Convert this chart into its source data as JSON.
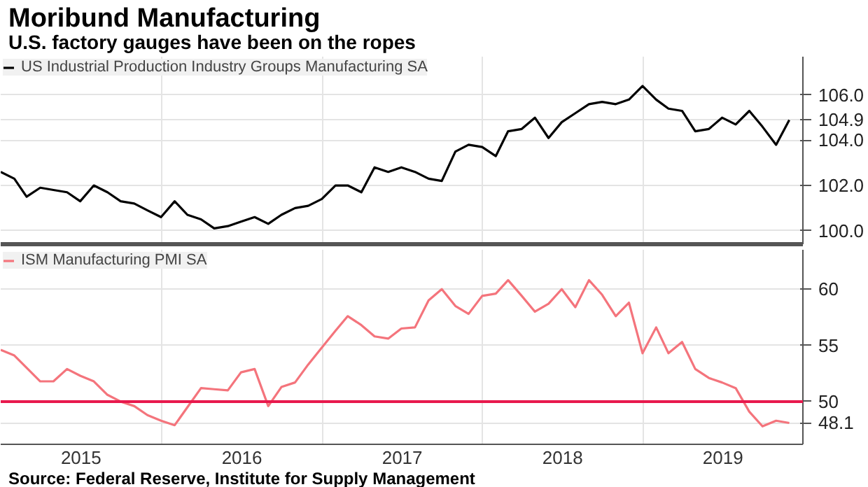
{
  "chart_data": [
    {
      "type": "line",
      "title": "Moribund Manufacturing",
      "subtitle": "U.S. factory gauges have been on the ropes",
      "x": [
        "2014-12-31",
        "2015-01-31",
        "2015-02-28",
        "2015-03-31",
        "2015-04-30",
        "2015-05-31",
        "2015-06-30",
        "2015-07-31",
        "2015-08-31",
        "2015-09-30",
        "2015-10-31",
        "2015-11-30",
        "2015-12-31",
        "2016-01-31",
        "2016-02-29",
        "2016-03-31",
        "2016-04-30",
        "2016-05-31",
        "2016-06-30",
        "2016-07-31",
        "2016-08-31",
        "2016-09-30",
        "2016-10-31",
        "2016-11-30",
        "2016-12-31",
        "2017-01-31",
        "2017-02-28",
        "2017-03-31",
        "2017-04-30",
        "2017-05-31",
        "2017-06-30",
        "2017-07-31",
        "2017-08-31",
        "2017-09-30",
        "2017-10-31",
        "2017-11-30",
        "2017-12-31",
        "2018-01-31",
        "2018-02-28",
        "2018-03-31",
        "2018-04-30",
        "2018-05-31",
        "2018-06-30",
        "2018-07-31",
        "2018-08-31",
        "2018-09-30",
        "2018-10-31",
        "2018-11-30",
        "2018-12-31",
        "2019-01-31",
        "2019-02-28",
        "2019-03-31",
        "2019-04-30",
        "2019-05-31",
        "2019-06-30",
        "2019-07-31",
        "2019-08-31",
        "2019-09-30",
        "2019-10-31",
        "2019-11-30"
      ],
      "series": [
        {
          "name": "US Industrial Production Industry Groups Manufacturing SA",
          "color": "#000000",
          "values": [
            102.6,
            102.3,
            101.5,
            101.9,
            101.8,
            101.7,
            101.3,
            102.0,
            101.7,
            101.3,
            101.2,
            100.9,
            100.6,
            101.3,
            100.7,
            100.5,
            100.1,
            100.2,
            100.4,
            100.6,
            100.3,
            100.7,
            101.0,
            101.1,
            101.4,
            102.0,
            102.0,
            101.7,
            102.8,
            102.6,
            102.8,
            102.6,
            102.3,
            102.2,
            103.5,
            103.8,
            103.7,
            103.3,
            104.4,
            104.5,
            105.0,
            104.1,
            104.8,
            105.2,
            105.6,
            105.7,
            105.6,
            105.8,
            106.4,
            105.8,
            105.4,
            105.3,
            104.4,
            104.5,
            105.0,
            104.7,
            105.3,
            104.6,
            103.8,
            104.9
          ]
        }
      ],
      "xlim": [
        "2014-12-31",
        "2019-12-31"
      ],
      "xticks": [
        {
          "value": "2016-01-01",
          "label": null
        },
        {
          "value": "2017-01-01",
          "label": null
        },
        {
          "value": "2018-01-01",
          "label": null
        },
        {
          "value": "2019-01-01",
          "label": null
        }
      ],
      "ylim": [
        99.4,
        107.7
      ],
      "yticks": [
        {
          "value": 100,
          "label": "100.0"
        },
        {
          "value": 102,
          "label": "102.0"
        },
        {
          "value": 104,
          "label": "104.0"
        },
        {
          "value": 104.9,
          "label": "104.9"
        },
        {
          "value": 106,
          "label": "106.0"
        }
      ],
      "tick_labels": "y",
      "grid": true,
      "legend": "top left"
    },
    {
      "type": "line",
      "x": [
        "2014-12-31",
        "2015-01-31",
        "2015-02-28",
        "2015-03-31",
        "2015-04-30",
        "2015-05-31",
        "2015-06-30",
        "2015-07-31",
        "2015-08-31",
        "2015-09-30",
        "2015-10-31",
        "2015-11-30",
        "2015-12-31",
        "2016-01-31",
        "2016-02-29",
        "2016-03-31",
        "2016-04-30",
        "2016-05-31",
        "2016-06-30",
        "2016-07-31",
        "2016-08-31",
        "2016-09-30",
        "2016-10-31",
        "2016-11-30",
        "2016-12-31",
        "2017-01-31",
        "2017-02-28",
        "2017-03-31",
        "2017-04-30",
        "2017-05-31",
        "2017-06-30",
        "2017-07-31",
        "2017-08-31",
        "2017-09-30",
        "2017-10-31",
        "2017-11-30",
        "2017-12-31",
        "2018-01-31",
        "2018-02-28",
        "2018-03-31",
        "2018-04-30",
        "2018-05-31",
        "2018-06-30",
        "2018-07-31",
        "2018-08-31",
        "2018-09-30",
        "2018-10-31",
        "2018-11-30",
        "2018-12-31",
        "2019-01-31",
        "2019-02-28",
        "2019-03-31",
        "2019-04-30",
        "2019-05-31",
        "2019-06-30",
        "2019-07-31",
        "2019-08-31",
        "2019-09-30",
        "2019-10-31",
        "2019-11-30"
      ],
      "series": [
        {
          "name": "ISM Manufacturing PMI SA",
          "color": "#f4747c",
          "values": [
            54.6,
            54.1,
            53.0,
            51.8,
            51.8,
            52.9,
            52.3,
            51.8,
            50.6,
            50.0,
            49.6,
            48.8,
            48.3,
            47.9,
            49.5,
            51.2,
            51.1,
            51.0,
            52.6,
            52.9,
            49.6,
            51.3,
            51.7,
            53.3,
            54.8,
            56.3,
            57.6,
            56.8,
            55.8,
            55.6,
            56.5,
            56.6,
            59.0,
            60.0,
            58.5,
            57.8,
            59.4,
            59.6,
            60.8,
            59.4,
            58.0,
            58.7,
            60.0,
            58.4,
            60.8,
            59.5,
            57.6,
            58.8,
            54.3,
            56.6,
            54.3,
            55.3,
            52.9,
            52.1,
            51.7,
            51.2,
            49.1,
            47.8,
            48.3,
            48.1
          ]
        }
      ],
      "xlim": [
        "2014-12-31",
        "2019-12-31"
      ],
      "xticks": [
        {
          "value": "2016-01-01",
          "label": null
        },
        {
          "value": "2017-01-01",
          "label": null
        },
        {
          "value": "2018-01-01",
          "label": null
        },
        {
          "value": "2019-01-01",
          "label": null
        },
        {
          "value": "2015-07-02",
          "label": "2015"
        },
        {
          "value": "2016-07-02",
          "label": "2016"
        },
        {
          "value": "2017-07-02",
          "label": "2017"
        },
        {
          "value": "2018-07-02",
          "label": "2018"
        },
        {
          "value": "2019-07-02",
          "label": "2019"
        }
      ],
      "ylim": [
        46.2,
        63.5
      ],
      "yticks": [
        {
          "value": 48.1,
          "label": "48.1"
        },
        50,
        55,
        60
      ],
      "grid": true,
      "legend": "top left",
      "ref_lines": [
        {
          "axis": "y",
          "value": 50,
          "color": "#e8194d"
        }
      ],
      "annotations": [
        "Source: Federal Reserve, Institute for Supply Management"
      ]
    }
  ]
}
